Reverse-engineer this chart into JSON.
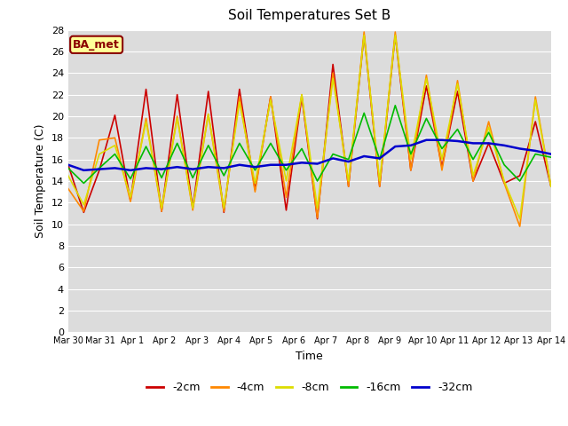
{
  "title": "Soil Temperatures Set B",
  "xlabel": "Time",
  "ylabel": "Soil Temperature (C)",
  "ylim": [
    0,
    28
  ],
  "yticks": [
    0,
    2,
    4,
    6,
    8,
    10,
    12,
    14,
    16,
    18,
    20,
    22,
    24,
    26,
    28
  ],
  "plot_bg": "#dcdcdc",
  "fig_bg": "#ffffff",
  "annotation_text": "BA_met",
  "annotation_bg": "#ffff99",
  "annotation_border": "#8b0000",
  "annotation_text_color": "#8b0000",
  "legend_labels": [
    "-2cm",
    "-4cm",
    "-8cm",
    "-16cm",
    "-32cm"
  ],
  "legend_colors": [
    "#cc0000",
    "#ff8800",
    "#dddd00",
    "#00bb00",
    "#0000cc"
  ],
  "x_labels": [
    "Mar 30",
    "Mar 31",
    "Apr 1",
    "Apr 2",
    "Apr 3",
    "Apr 4",
    "Apr 5",
    "Apr 6",
    "Apr 7",
    "Apr 8",
    "Apr 9",
    "Apr 10",
    "Apr 11",
    "Apr 12",
    "Apr 13",
    "Apr 14"
  ],
  "series": {
    "neg2cm": {
      "color": "#cc0000",
      "linewidth": 1.2,
      "data": [
        15.5,
        11.1,
        15.0,
        20.1,
        12.2,
        22.5,
        11.2,
        22.0,
        11.5,
        22.3,
        11.1,
        22.5,
        13.2,
        21.8,
        11.3,
        21.8,
        10.5,
        24.8,
        13.5,
        27.5,
        13.5,
        27.5,
        15.0,
        22.8,
        15.3,
        22.3,
        14.0,
        17.5,
        13.8,
        14.5,
        19.5,
        13.5
      ]
    },
    "neg4cm": {
      "color": "#ff8800",
      "linewidth": 1.2,
      "data": [
        13.3,
        11.2,
        17.8,
        18.0,
        12.1,
        19.8,
        11.2,
        20.0,
        11.3,
        20.2,
        11.2,
        21.8,
        13.0,
        21.8,
        12.5,
        22.0,
        10.6,
        24.0,
        13.5,
        27.8,
        13.5,
        27.8,
        15.0,
        23.8,
        15.0,
        23.3,
        14.0,
        19.5,
        13.8,
        9.8,
        21.8,
        13.5
      ]
    },
    "neg8cm": {
      "color": "#dddd00",
      "linewidth": 1.2,
      "data": [
        14.5,
        11.8,
        16.5,
        17.3,
        12.5,
        19.5,
        11.5,
        19.8,
        11.5,
        20.2,
        11.5,
        21.3,
        13.8,
        21.5,
        14.0,
        22.0,
        11.5,
        23.5,
        14.0,
        27.5,
        14.0,
        27.5,
        16.0,
        23.5,
        16.0,
        23.0,
        14.5,
        19.0,
        14.0,
        10.5,
        21.5,
        13.5
      ]
    },
    "neg16cm": {
      "color": "#00bb00",
      "linewidth": 1.2,
      "data": [
        15.2,
        13.8,
        15.2,
        16.5,
        14.2,
        17.2,
        14.3,
        17.5,
        14.3,
        17.3,
        14.5,
        17.5,
        15.0,
        17.5,
        15.0,
        17.0,
        14.0,
        16.5,
        16.0,
        20.3,
        16.0,
        21.0,
        16.5,
        19.8,
        17.0,
        18.8,
        16.0,
        18.5,
        15.5,
        14.0,
        16.5,
        16.2
      ]
    },
    "neg32cm": {
      "color": "#0000cc",
      "linewidth": 1.8,
      "data": [
        15.5,
        15.0,
        15.1,
        15.2,
        15.0,
        15.2,
        15.1,
        15.3,
        15.1,
        15.3,
        15.2,
        15.5,
        15.3,
        15.5,
        15.5,
        15.7,
        15.6,
        16.1,
        15.8,
        16.3,
        16.1,
        17.2,
        17.3,
        17.8,
        17.8,
        17.7,
        17.5,
        17.5,
        17.3,
        17.0,
        16.8,
        16.5
      ]
    }
  }
}
